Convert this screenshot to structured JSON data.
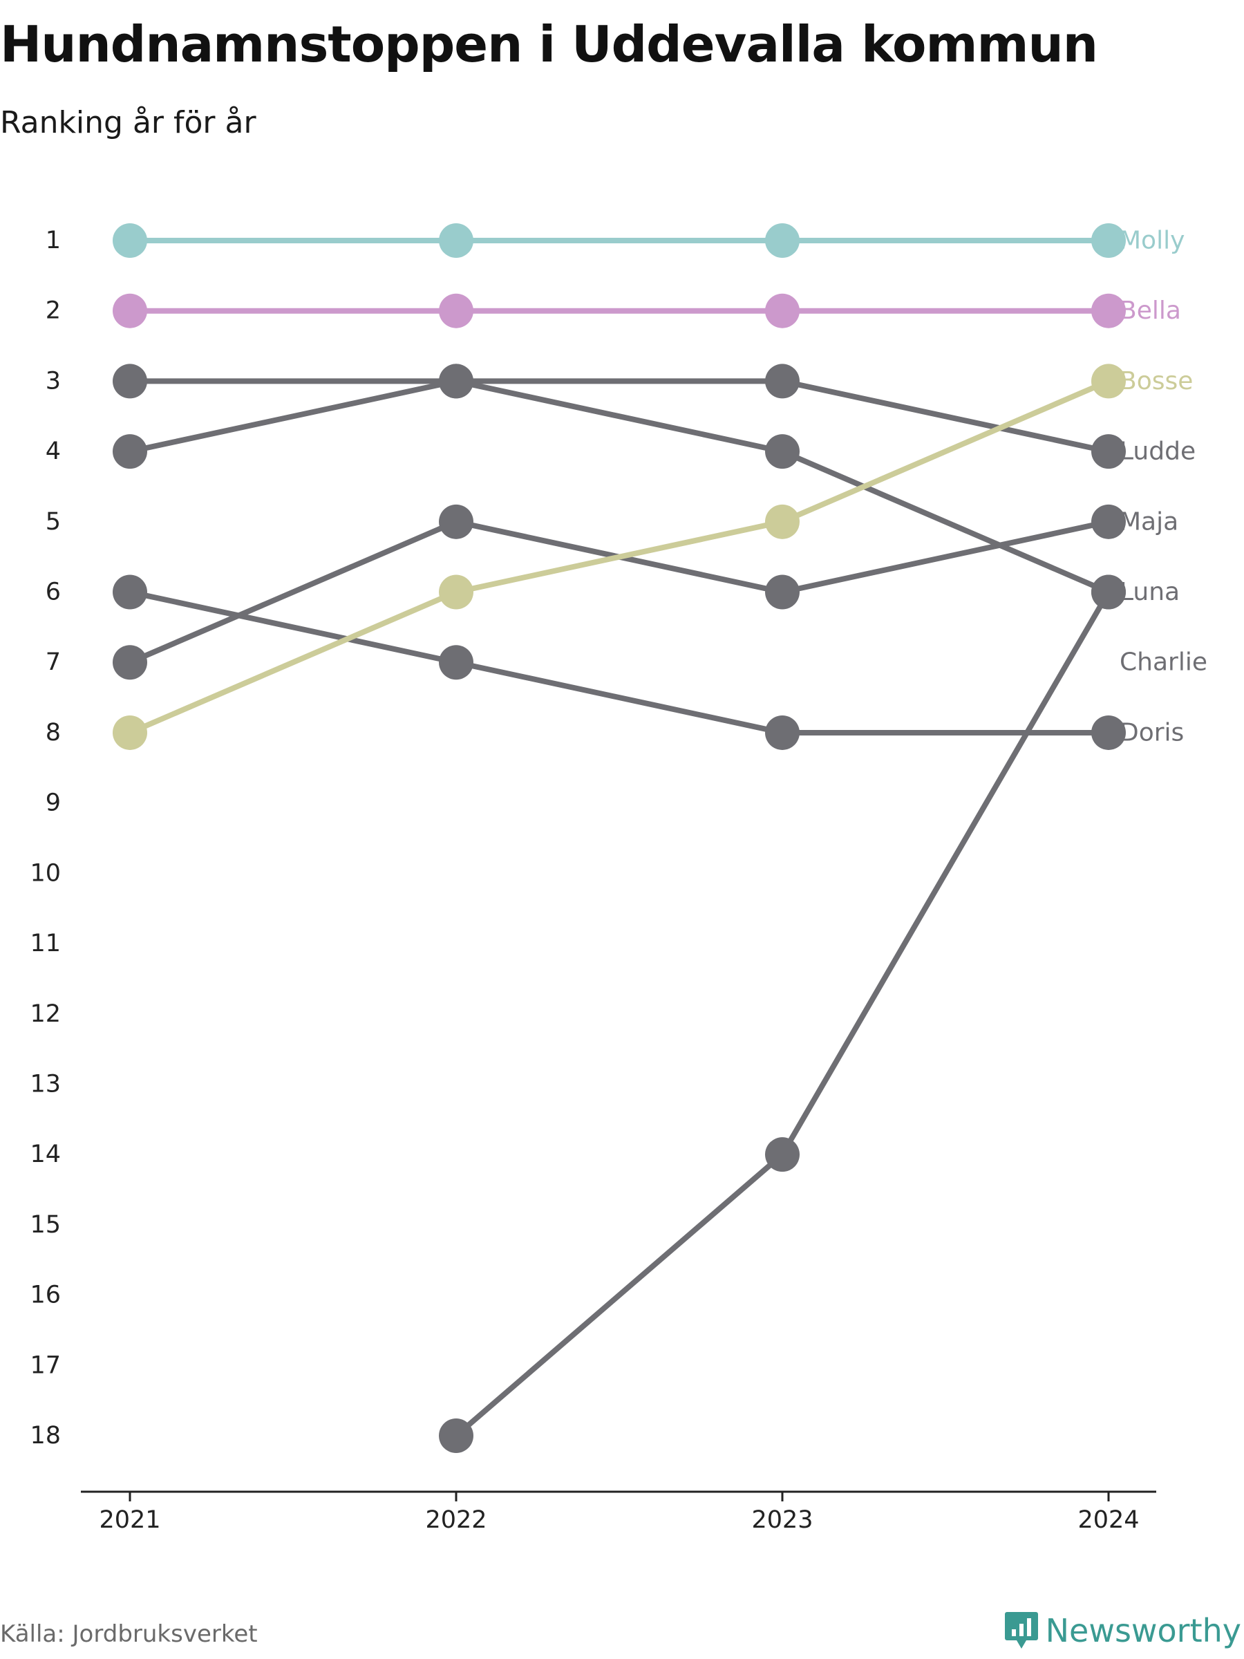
{
  "title": "Hundnamnstoppen i Uddevalla kommun",
  "subtitle": "Ranking år för år",
  "source": "Källa: Jordbruksverket",
  "brand": {
    "name": "Newsworthy",
    "icon": "newsworthy-logo-icon",
    "color": "#3a9a92"
  },
  "chart_data": {
    "type": "line",
    "subtype": "bump",
    "x": [
      "2021",
      "2022",
      "2023",
      "2024"
    ],
    "y_ticks": [
      "1",
      "2",
      "3",
      "4",
      "5",
      "6",
      "7",
      "8",
      "9",
      "10",
      "11",
      "12",
      "13",
      "14",
      "15",
      "16",
      "17",
      "18"
    ],
    "ylim": [
      1,
      18
    ],
    "y_reversed": true,
    "grid": false,
    "legend": "end-labels-right",
    "series": [
      {
        "name": "Molly",
        "color": "#99cccc",
        "values": [
          1,
          1,
          1,
          1
        ]
      },
      {
        "name": "Bella",
        "color": "#cc99cc",
        "values": [
          2,
          2,
          2,
          2
        ]
      },
      {
        "name": "Bosse",
        "color": "#cccc99",
        "values": [
          8,
          6,
          5,
          3
        ]
      },
      {
        "name": "Ludde",
        "color": "#6e6e73",
        "values": [
          4,
          3,
          3,
          4
        ]
      },
      {
        "name": "Maja",
        "color": "#6e6e73",
        "values": [
          7,
          5,
          6,
          5
        ]
      },
      {
        "name": "Luna",
        "color": "#6e6e73",
        "values": [
          3,
          3,
          4,
          6
        ]
      },
      {
        "name": "Charlie",
        "color": "#6e6e73",
        "values": [
          null,
          18,
          14,
          6
        ]
      },
      {
        "name": "Doris",
        "color": "#6e6e73",
        "values": [
          6,
          7,
          8,
          8
        ]
      }
    ],
    "end_labels": [
      {
        "text": "Molly",
        "rank": 1,
        "color": "#99cccc"
      },
      {
        "text": "Bella",
        "rank": 2,
        "color": "#cc99cc"
      },
      {
        "text": "Bosse",
        "rank": 3,
        "color": "#cccc99"
      },
      {
        "text": "Ludde",
        "rank": 4,
        "color": "#6e6e73"
      },
      {
        "text": "Maja",
        "rank": 5,
        "color": "#6e6e73"
      },
      {
        "text": "Luna",
        "rank": 6,
        "color": "#6e6e73"
      },
      {
        "text": "Charlie",
        "rank": 7,
        "color": "#6e6e73"
      },
      {
        "text": "Doris",
        "rank": 8,
        "color": "#6e6e73"
      }
    ]
  }
}
